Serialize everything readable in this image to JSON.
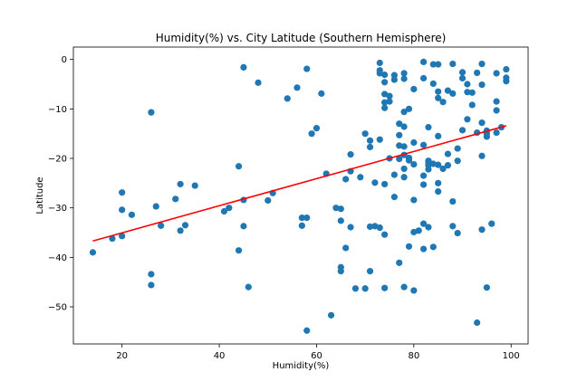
{
  "chart_data": {
    "type": "scatter",
    "title": "Humidity(%) vs. City Latitude (Southern Hemisphere)",
    "xlabel": "Humidity(%)",
    "ylabel": "Latitude",
    "xlim": [
      10,
      103.5
    ],
    "ylim": [
      -57.5,
      2.5
    ],
    "xticks": [
      20,
      40,
      60,
      80,
      100
    ],
    "yticks": [
      0,
      -10,
      -20,
      -30,
      -40,
      -50
    ],
    "grid": false,
    "colors": {
      "points": "#1f77b4",
      "regression": "#ff0000"
    },
    "regression_line": {
      "x": [
        14,
        99
      ],
      "y": [
        -36.7,
        -13.4
      ]
    },
    "series": [
      {
        "points": [
          [
            14,
            -39
          ],
          [
            18,
            -36.2
          ],
          [
            20,
            -35.7
          ],
          [
            20,
            -30.4
          ],
          [
            20,
            -26.9
          ],
          [
            22,
            -31.4
          ],
          [
            26,
            -10.7
          ],
          [
            26,
            -43.4
          ],
          [
            26,
            -45.6
          ],
          [
            27,
            -29.7
          ],
          [
            28,
            -33.6
          ],
          [
            31,
            -28.2
          ],
          [
            32,
            -25.2
          ],
          [
            32,
            -34.6
          ],
          [
            33,
            -33.5
          ],
          [
            35,
            -25.5
          ],
          [
            41,
            -30.7
          ],
          [
            42,
            -30
          ],
          [
            44,
            -21.6
          ],
          [
            44,
            -38.6
          ],
          [
            45,
            -1.6
          ],
          [
            45,
            -28.4
          ],
          [
            45,
            -33.7
          ],
          [
            46,
            -46
          ],
          [
            48,
            -4.7
          ],
          [
            50,
            -28.5
          ],
          [
            51,
            -27
          ],
          [
            54,
            -7.9
          ],
          [
            56,
            -5.7
          ],
          [
            57,
            -32
          ],
          [
            57,
            -33.6
          ],
          [
            58,
            -1.9
          ],
          [
            58,
            -32
          ],
          [
            58,
            -54.8
          ],
          [
            59,
            -15
          ],
          [
            60,
            -13.9
          ],
          [
            61,
            -6.9
          ],
          [
            62,
            -23.1
          ],
          [
            63,
            -51.7
          ],
          [
            64,
            -30
          ],
          [
            65,
            -30.2
          ],
          [
            65,
            -32.6
          ],
          [
            65,
            -42
          ],
          [
            65,
            -42.8
          ],
          [
            66,
            -24.2
          ],
          [
            66,
            -38.1
          ],
          [
            67,
            -19.2
          ],
          [
            67,
            -22.6
          ],
          [
            67,
            -33.9
          ],
          [
            68,
            -46.3
          ],
          [
            69,
            -23.8
          ],
          [
            70,
            -15
          ],
          [
            70,
            -46.3
          ],
          [
            71,
            -16.4
          ],
          [
            71,
            -17.7
          ],
          [
            71,
            -33.8
          ],
          [
            71,
            -42.8
          ],
          [
            72,
            -24.9
          ],
          [
            72,
            -33.7
          ],
          [
            73,
            -0.7
          ],
          [
            73,
            -2.2
          ],
          [
            73,
            -2.8
          ],
          [
            73,
            -16.2
          ],
          [
            73,
            -34
          ],
          [
            74,
            -3.1
          ],
          [
            74,
            -4.6
          ],
          [
            74,
            -7
          ],
          [
            74,
            -8.7
          ],
          [
            74,
            -9.8
          ],
          [
            74,
            -25.2
          ],
          [
            74,
            -35.4
          ],
          [
            74,
            -46.2
          ],
          [
            75,
            -7.4
          ],
          [
            75,
            -8.5
          ],
          [
            75,
            -20
          ],
          [
            76,
            -3.2
          ],
          [
            76,
            -4.1
          ],
          [
            76,
            -23.3
          ],
          [
            76,
            -27.8
          ],
          [
            77,
            -13
          ],
          [
            77,
            -15.3
          ],
          [
            77,
            -17.4
          ],
          [
            77,
            -20.1
          ],
          [
            77,
            -41.1
          ],
          [
            78,
            -2.8
          ],
          [
            78,
            -3.9
          ],
          [
            78,
            -10.6
          ],
          [
            78,
            -13.6
          ],
          [
            78,
            -17.6
          ],
          [
            78,
            -19.3
          ],
          [
            78,
            -22.1
          ],
          [
            78,
            -23.8
          ],
          [
            78,
            -46
          ],
          [
            79,
            -10
          ],
          [
            79,
            -19.9
          ],
          [
            79,
            -20.4
          ],
          [
            79,
            -37.8
          ],
          [
            80,
            -6
          ],
          [
            80,
            -16.8
          ],
          [
            80,
            -21.2
          ],
          [
            80,
            -28.4
          ],
          [
            80,
            -34.9
          ],
          [
            80,
            -46.7
          ],
          [
            81,
            -34.6
          ],
          [
            82,
            -0.5
          ],
          [
            82,
            -3.8
          ],
          [
            82,
            -17.3
          ],
          [
            82,
            -23.5
          ],
          [
            82,
            -25.3
          ],
          [
            82,
            -33.2
          ],
          [
            82,
            -38.3
          ],
          [
            83,
            -13.7
          ],
          [
            83,
            -20.5
          ],
          [
            83,
            -20.8
          ],
          [
            83,
            -21.4
          ],
          [
            83,
            -22.2
          ],
          [
            83,
            -33.9
          ],
          [
            84,
            -1
          ],
          [
            84,
            -4.9
          ],
          [
            84,
            -21.1
          ],
          [
            84,
            -37.9
          ],
          [
            85,
            -1
          ],
          [
            85,
            -6.5
          ],
          [
            85,
            -7.8
          ],
          [
            85,
            -15.5
          ],
          [
            85,
            -21.3
          ],
          [
            85,
            -25
          ],
          [
            85,
            -26.7
          ],
          [
            86,
            -8.6
          ],
          [
            86,
            -22.1
          ],
          [
            87,
            -6.3
          ],
          [
            87,
            -19.1
          ],
          [
            87,
            -21.4
          ],
          [
            88,
            -0.9
          ],
          [
            88,
            -6.9
          ],
          [
            88,
            -28.7
          ],
          [
            88,
            -33.7
          ],
          [
            89,
            -18
          ],
          [
            89,
            -20.5
          ],
          [
            89,
            -35.1
          ],
          [
            90,
            -2.6
          ],
          [
            90,
            -3.8
          ],
          [
            90,
            -14.3
          ],
          [
            91,
            -5
          ],
          [
            91,
            -6.6
          ],
          [
            91,
            -12.1
          ],
          [
            92,
            -6.7
          ],
          [
            92,
            -9.2
          ],
          [
            93,
            -2.7
          ],
          [
            93,
            -14.8
          ],
          [
            93,
            -53.2
          ],
          [
            94,
            -0.9
          ],
          [
            94,
            -5.1
          ],
          [
            94,
            -12.8
          ],
          [
            94,
            -19.5
          ],
          [
            94,
            -34.4
          ],
          [
            95,
            -14.4
          ],
          [
            95,
            -15
          ],
          [
            95,
            -15.6
          ],
          [
            95,
            -46.1
          ],
          [
            96,
            -33.2
          ],
          [
            97,
            -2.8
          ],
          [
            97,
            -8.5
          ],
          [
            97,
            -10.3
          ],
          [
            97,
            -14.8
          ],
          [
            98,
            -13.7
          ],
          [
            99,
            -2
          ],
          [
            99,
            -3.7
          ],
          [
            99,
            -4.4
          ]
        ]
      }
    ]
  }
}
